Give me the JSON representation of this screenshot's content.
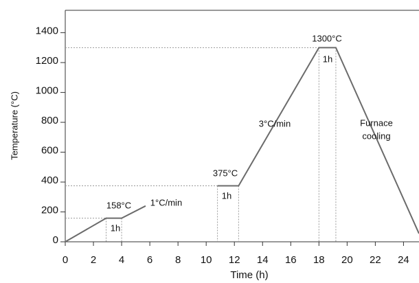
{
  "chart_data": {
    "type": "line",
    "x_label": "Time (h)",
    "y_label": "Temperature (°C)",
    "x": [
      0,
      2.9,
      4.0,
      5.7,
      9.3,
      10.8,
      12.3,
      18.0,
      19.2,
      25.1
    ],
    "series": [
      {
        "color": "#6b6b6b",
        "values": [
          0,
          158,
          158,
          240,
          null,
          375,
          375,
          1300,
          1300,
          55
        ]
      }
    ],
    "xlim": [
      0,
      25.1
    ],
    "xticks": [
      0,
      2,
      4,
      6,
      8,
      10,
      12,
      14,
      16,
      18,
      20,
      22,
      24
    ],
    "ylim": [
      0,
      1550
    ],
    "yticks": [
      0,
      200,
      400,
      600,
      800,
      1000,
      1200,
      1400
    ],
    "annotations": [
      "158°C",
      "1h",
      "1°C/min",
      "375°C",
      "1h",
      "3°C/min",
      "1300°C",
      "1h",
      "Furnace",
      "cooling"
    ]
  }
}
